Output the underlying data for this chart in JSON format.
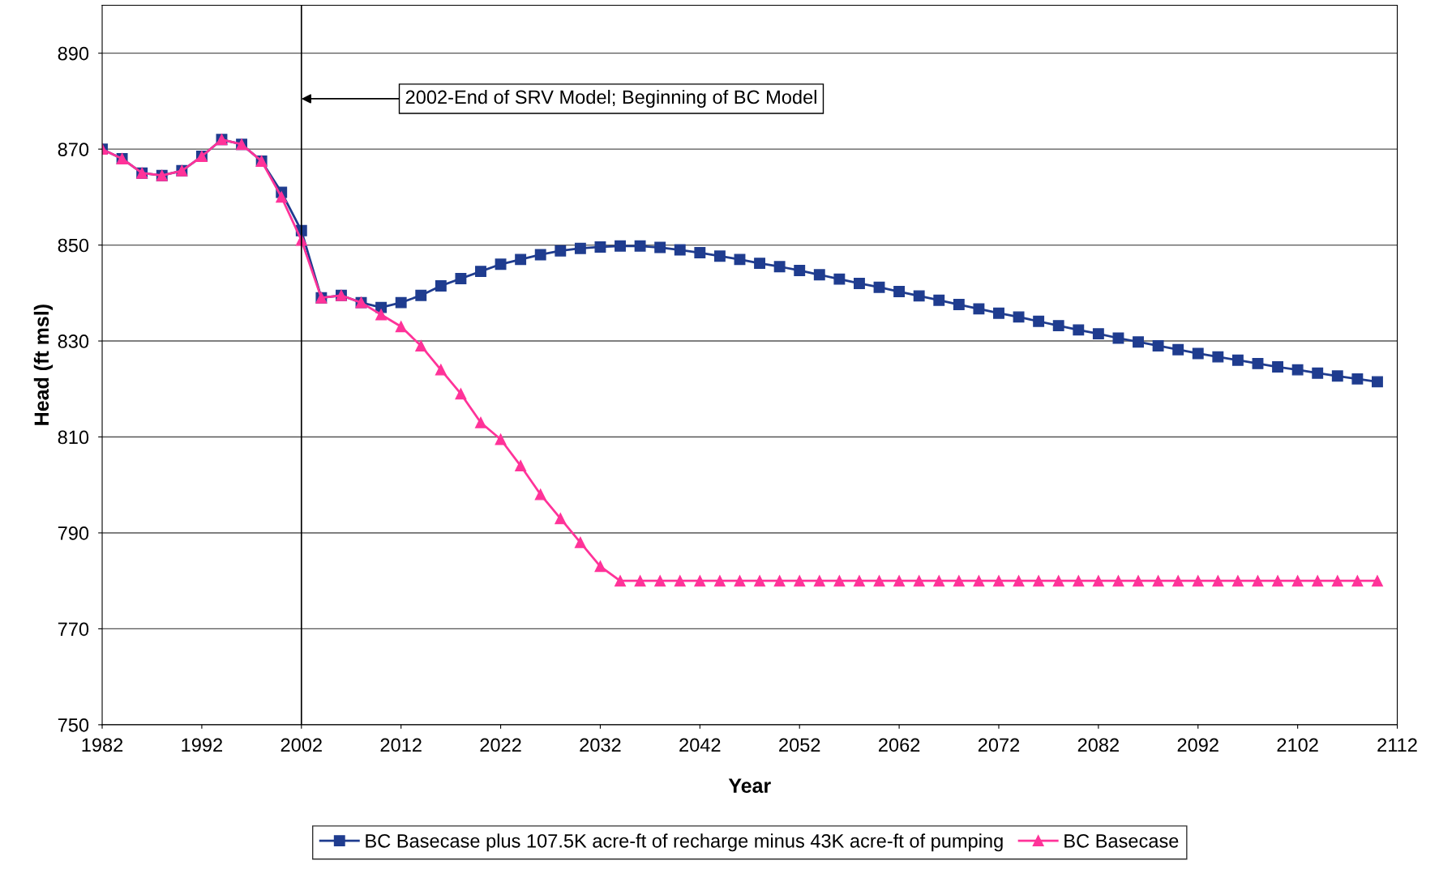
{
  "chart_data": {
    "type": "line",
    "xlabel": "Year",
    "ylabel": "Head (ft msl)",
    "x": [
      1982,
      1984,
      1986,
      1988,
      1990,
      1992,
      1994,
      1996,
      1998,
      2000,
      2002,
      2004,
      2006,
      2008,
      2010,
      2012,
      2014,
      2016,
      2018,
      2020,
      2022,
      2024,
      2026,
      2028,
      2030,
      2032,
      2034,
      2036,
      2038,
      2040,
      2042,
      2044,
      2046,
      2048,
      2050,
      2052,
      2054,
      2056,
      2058,
      2060,
      2062,
      2064,
      2066,
      2068,
      2070,
      2072,
      2074,
      2076,
      2078,
      2080,
      2082,
      2084,
      2086,
      2088,
      2090,
      2092,
      2094,
      2096,
      2098,
      2100,
      2102,
      2104,
      2106,
      2108,
      2110
    ],
    "series": [
      {
        "name": "BC Basecase plus 107.5K acre-ft of recharge minus 43K acre-ft of pumping",
        "color": "#1f3c8f",
        "marker": "square",
        "values": [
          870,
          868,
          865,
          864.5,
          865.5,
          868.5,
          872,
          871,
          867.5,
          861,
          853,
          839,
          839.5,
          838,
          837,
          838,
          839.5,
          841.5,
          843,
          844.5,
          846,
          847,
          848,
          848.8,
          849.3,
          849.6,
          849.8,
          849.8,
          849.5,
          849,
          848.4,
          847.7,
          847,
          846.2,
          845.5,
          844.7,
          843.8,
          842.9,
          842,
          841.2,
          840.3,
          839.4,
          838.5,
          837.6,
          836.7,
          835.8,
          835,
          834.1,
          833.2,
          832.3,
          831.5,
          830.6,
          829.8,
          829,
          828.2,
          827.4,
          826.7,
          826,
          825.3,
          824.6,
          824,
          823.3,
          822.7,
          822.1,
          821.5
        ]
      },
      {
        "name": "BC Basecase",
        "color": "#ff3399",
        "marker": "triangle",
        "values": [
          870,
          868,
          865,
          864.5,
          865.5,
          868.5,
          872,
          871,
          867.5,
          860,
          851,
          839,
          839.5,
          838,
          835.5,
          833,
          829,
          824,
          819,
          813,
          809.5,
          804,
          798,
          793,
          788,
          783,
          780,
          780,
          780,
          780,
          780,
          780,
          780,
          780,
          780,
          780,
          780,
          780,
          780,
          780,
          780,
          780,
          780,
          780,
          780,
          780,
          780,
          780,
          780,
          780,
          780,
          780,
          780,
          780,
          780,
          780,
          780,
          780,
          780,
          780,
          780,
          780,
          780,
          780,
          780
        ]
      }
    ],
    "xlim": [
      1982,
      2112
    ],
    "xticks": [
      1982,
      1992,
      2002,
      2012,
      2022,
      2032,
      2042,
      2052,
      2062,
      2072,
      2082,
      2092,
      2102,
      2112
    ],
    "ylim": [
      750,
      900
    ],
    "yticks": [
      750,
      770,
      790,
      810,
      830,
      850,
      870,
      890
    ],
    "grid": "y",
    "legend": "bottom",
    "line_style": "solid",
    "ref_lines": [
      {
        "axis": "x",
        "value": 2002,
        "label": "2002-End of SRV Model; Beginning of BC Model",
        "color": "#000000"
      }
    ]
  }
}
